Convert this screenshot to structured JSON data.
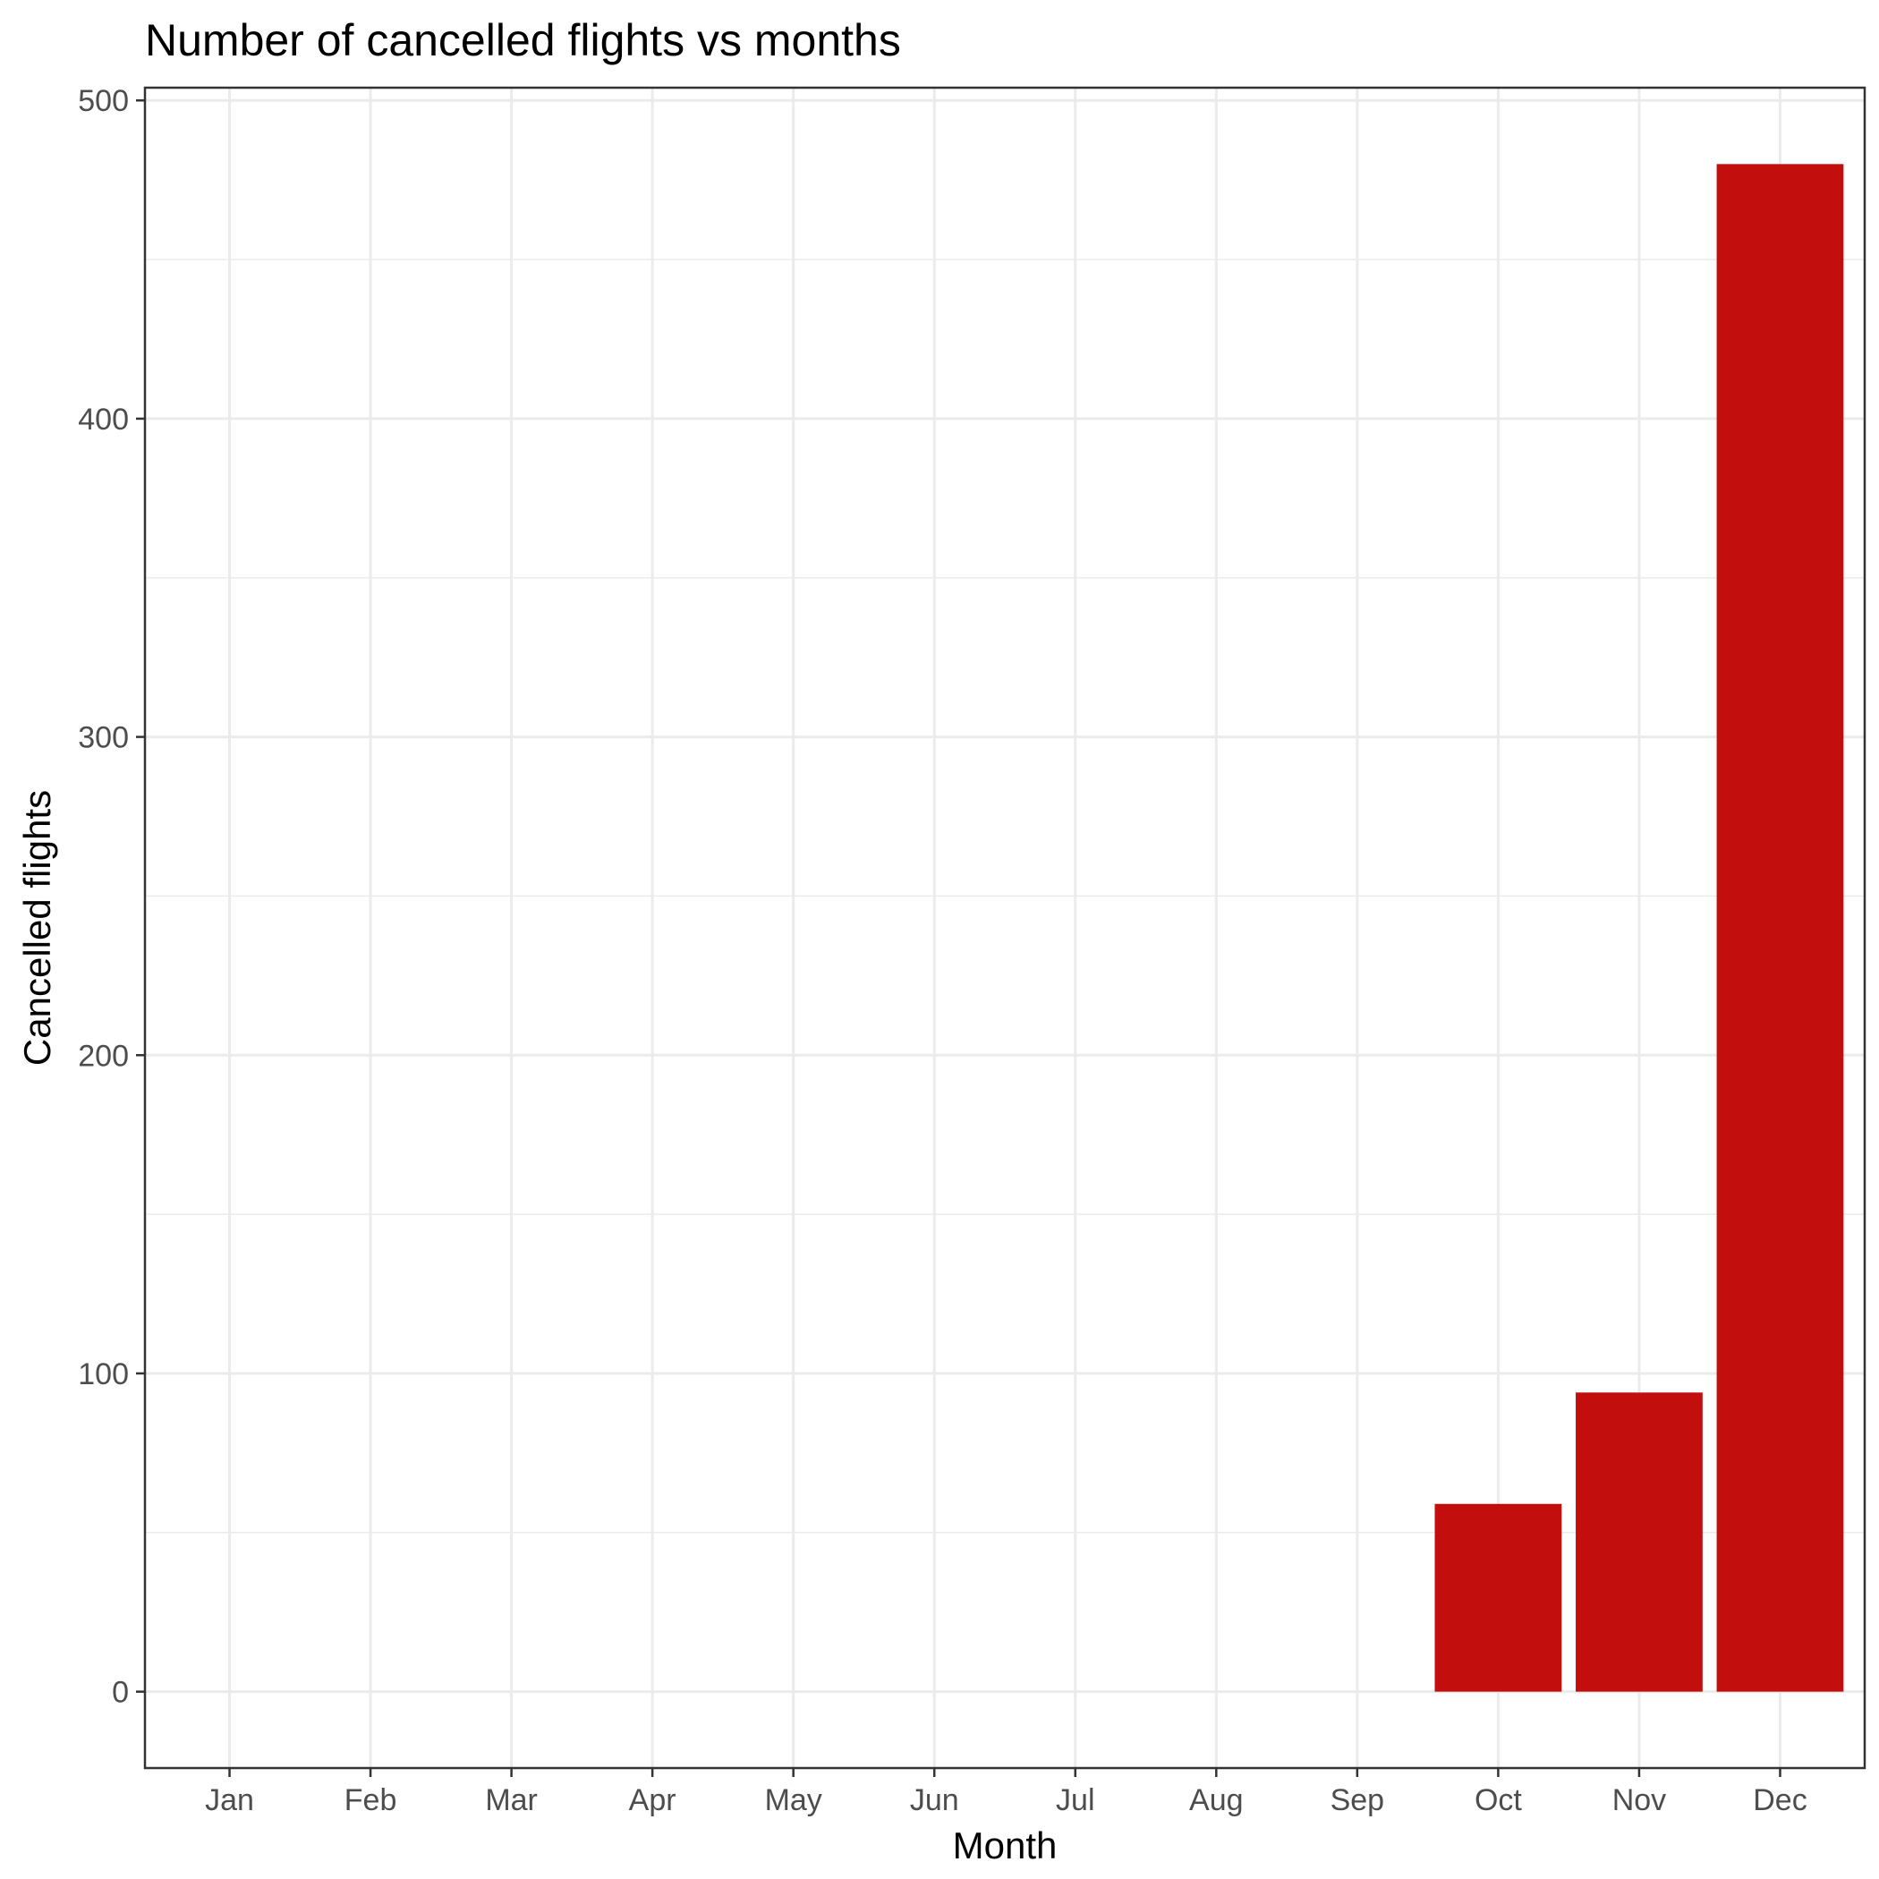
{
  "chart_data": {
    "type": "bar",
    "title": "Number of cancelled flights vs months",
    "xlabel": "Month",
    "ylabel": "Cancelled flights",
    "categories": [
      "Jan",
      "Feb",
      "Mar",
      "Apr",
      "May",
      "Jun",
      "Jul",
      "Aug",
      "Sep",
      "Oct",
      "Nov",
      "Dec"
    ],
    "values": [
      0,
      0,
      0,
      0,
      0,
      0,
      0,
      0,
      0,
      59,
      94,
      480
    ],
    "ylim": [
      -24,
      504
    ],
    "y_ticks": [
      0,
      100,
      200,
      300,
      400,
      500
    ],
    "grid": true,
    "legend": "none",
    "bar_color": "#c30e0e",
    "grid_color": "#ebebeb",
    "panel_border_color": "#333333"
  }
}
